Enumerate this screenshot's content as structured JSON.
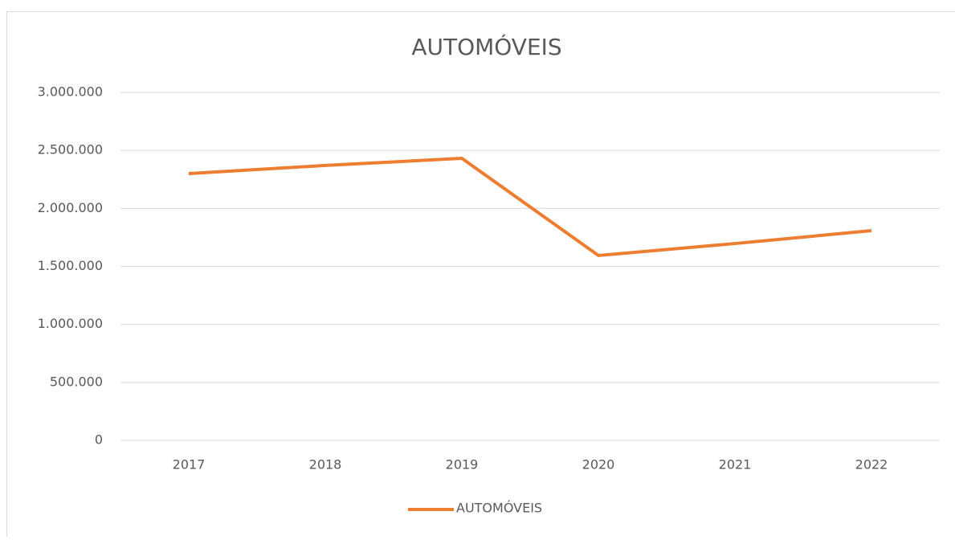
{
  "chart_data": {
    "type": "line",
    "title": "AUTOMÓVEIS",
    "categories": [
      "2017",
      "2018",
      "2019",
      "2020",
      "2021",
      "2022"
    ],
    "series": [
      {
        "name": "AUTOMÓVEIS",
        "color": "#ed7d31",
        "values": [
          2300000,
          2370000,
          2432000,
          1594000,
          1697000,
          1808000
        ]
      }
    ],
    "ylim": [
      0,
      3000000
    ],
    "yticks": [
      0,
      {
        "value": 500000,
        "label": "500.000"
      },
      {
        "value": 1000000,
        "label": "1.000.000"
      },
      {
        "value": 1500000,
        "label": "1.500.000"
      },
      {
        "value": 2000000,
        "label": "2.000.000"
      },
      {
        "value": 2500000,
        "label": "2.500.000"
      },
      {
        "value": 3000000,
        "label": "3.000.000"
      }
    ],
    "grid": true,
    "legend": "bottom"
  }
}
